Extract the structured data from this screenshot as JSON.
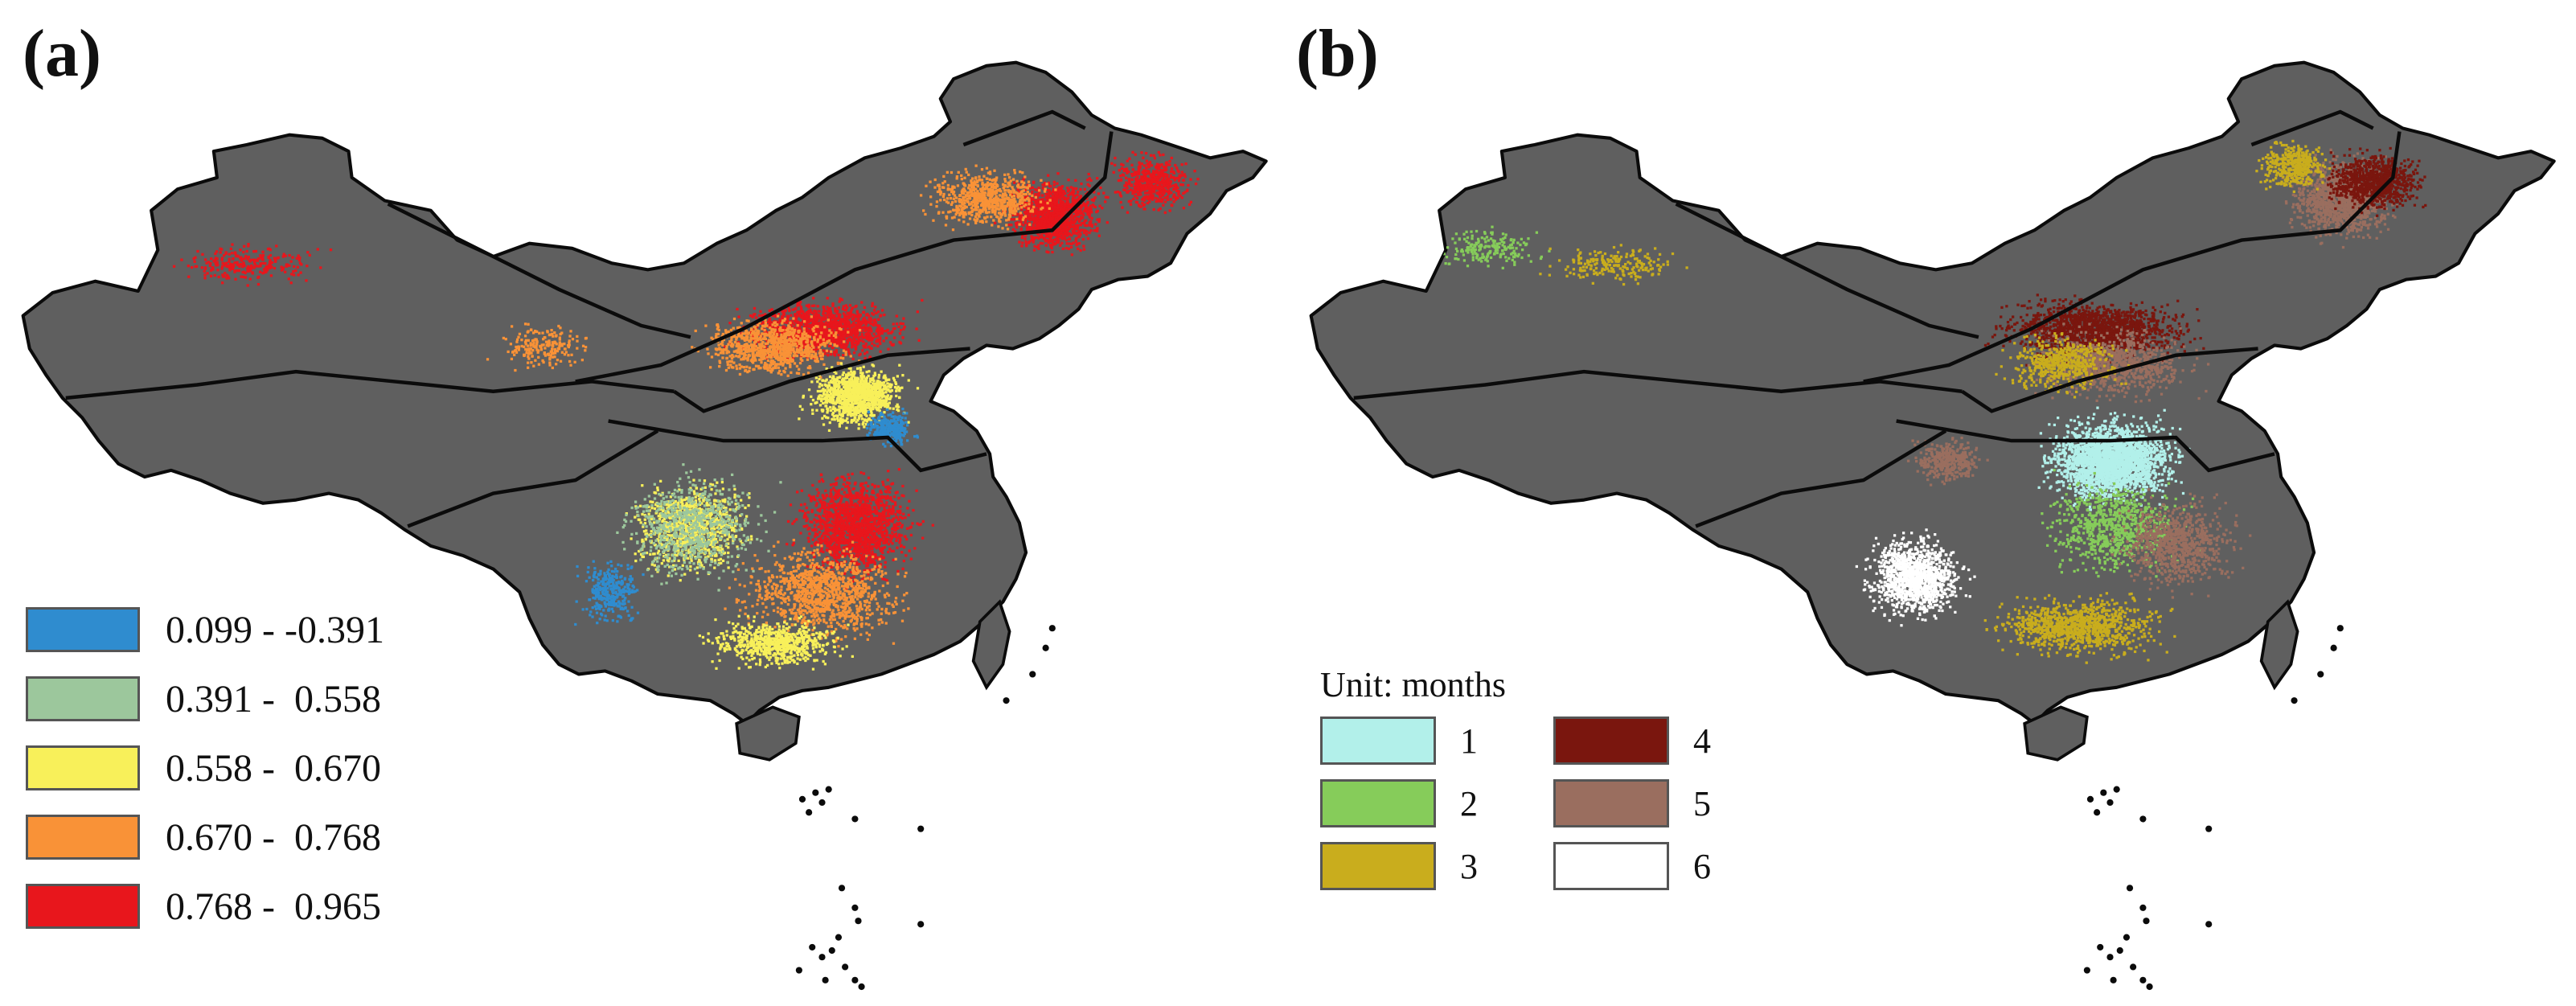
{
  "colors": {
    "land": "#5f5f5f",
    "border": "#0b0b0b"
  },
  "panel_a": {
    "label": "(a)",
    "legend": [
      {
        "text": "0.099 - -0.391",
        "color": "#2f8ccf"
      },
      {
        "text": "0.391 -  0.558",
        "color": "#9cc79c"
      },
      {
        "text": "0.558 -  0.670",
        "color": "#f8f05a"
      },
      {
        "text": "0.670 -  0.768",
        "color": "#f99237"
      },
      {
        "text": "0.768 -  0.965",
        "color": "#e8161c"
      }
    ]
  },
  "panel_b": {
    "label": "(b)",
    "unit": "Unit: months",
    "legend": [
      {
        "text": "1",
        "color": "#b2f0ea"
      },
      {
        "text": "4",
        "color": "#7a160e"
      },
      {
        "text": "2",
        "color": "#86cc5a"
      },
      {
        "text": "5",
        "color": "#9a6e5f"
      },
      {
        "text": "3",
        "color": "#c9ad1d"
      },
      {
        "text": "6",
        "color": "#ffffff"
      }
    ]
  }
}
